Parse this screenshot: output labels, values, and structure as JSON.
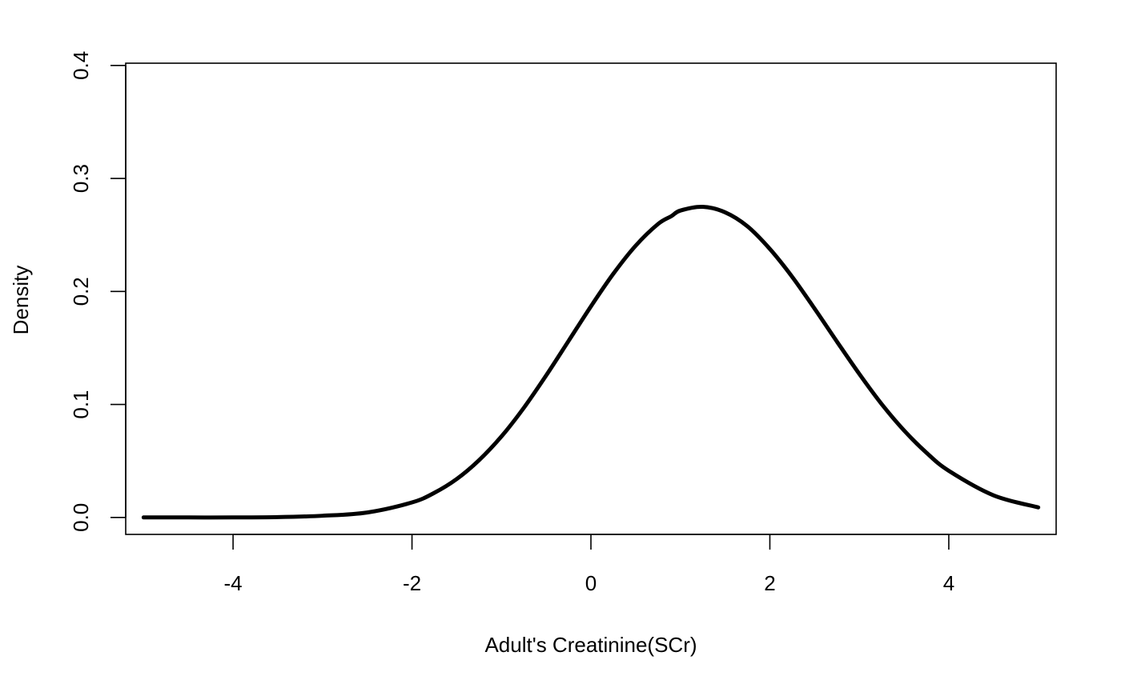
{
  "chart_data": {
    "type": "line",
    "title": "",
    "xlabel": "Adult's Creatinine(SCr)",
    "ylabel": "Density",
    "xlim": [
      -5.2,
      5.2
    ],
    "ylim": [
      -0.015,
      0.402
    ],
    "x_ticks": [
      -4,
      -2,
      0,
      2,
      4
    ],
    "x_tick_labels": [
      "-4",
      "-2",
      "0",
      "2",
      "4"
    ],
    "y_ticks": [
      0.0,
      0.1,
      0.2,
      0.3,
      0.4
    ],
    "y_tick_labels": [
      "0.0",
      "0.1",
      "0.2",
      "0.3",
      "0.4"
    ],
    "grid": false,
    "legend": "none",
    "line_color": "#000000",
    "series": [
      {
        "x": [
          -5,
          -4.5,
          -4,
          -3.5,
          -3,
          -2.5,
          -2,
          -1.75,
          -1.5,
          -1.25,
          -1,
          -0.75,
          -0.5,
          -0.25,
          0,
          0.25,
          0.5,
          0.75,
          0.9,
          1,
          1.25,
          1.5,
          1.75,
          2,
          2.25,
          2.5,
          2.75,
          3,
          3.25,
          3.5,
          3.75,
          4,
          4.5,
          5
        ],
        "y": [
          0.0,
          0.0,
          0.0,
          0.0003,
          0.0015,
          0.0044,
          0.0133,
          0.0218,
          0.034,
          0.0507,
          0.0717,
          0.097,
          0.1257,
          0.1562,
          0.1868,
          0.2156,
          0.2405,
          0.2597,
          0.2667,
          0.2716,
          0.2749,
          0.27,
          0.2576,
          0.2376,
          0.2129,
          0.1848,
          0.1556,
          0.127,
          0.1003,
          0.077,
          0.0573,
          0.0413,
          0.0196,
          0.0089
        ]
      }
    ]
  }
}
